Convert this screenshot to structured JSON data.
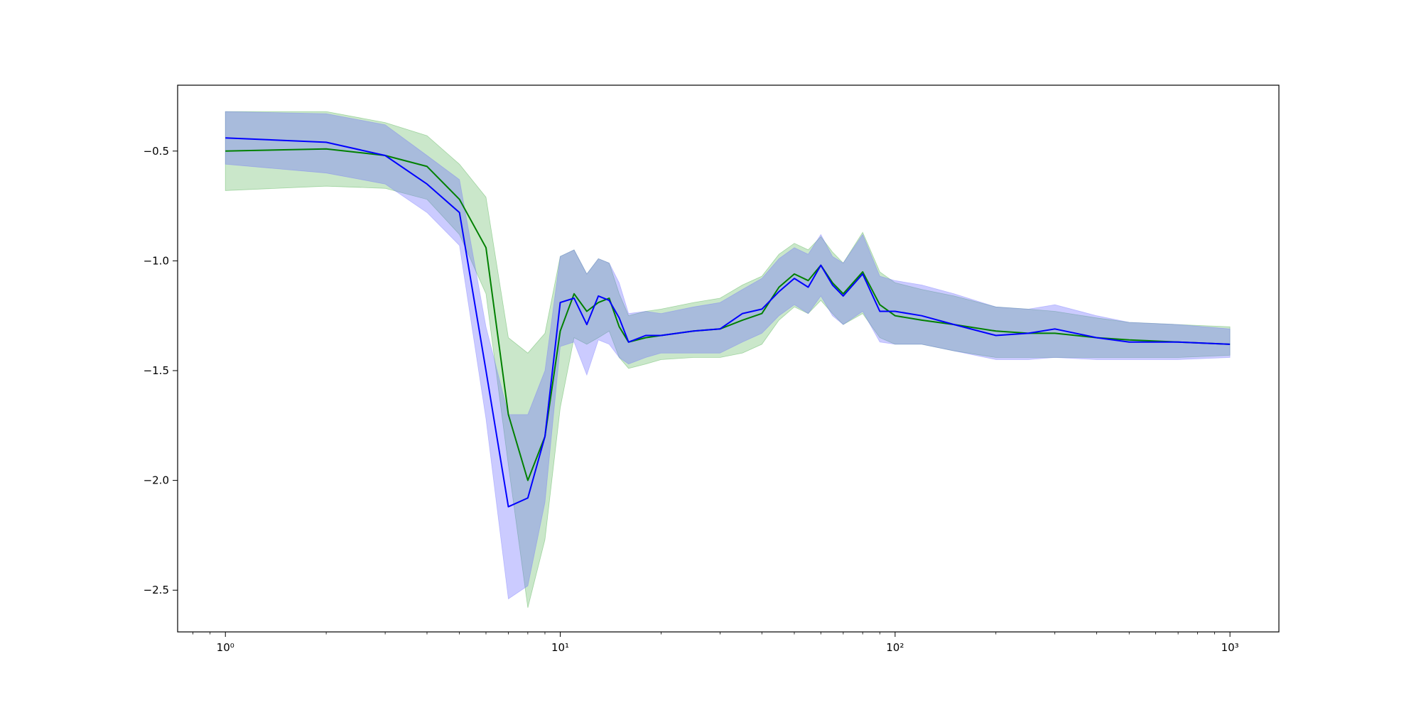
{
  "chart_data": {
    "type": "line",
    "title": "",
    "xlabel": "",
    "ylabel": "",
    "x_scale": "log",
    "xlim": [
      0.72,
      1400
    ],
    "ylim": [
      -2.69,
      -0.2
    ],
    "x_ticks": [
      {
        "value": 1,
        "label": "10⁰"
      },
      {
        "value": 10,
        "label": "10¹"
      },
      {
        "value": 100,
        "label": "10²"
      },
      {
        "value": 1000,
        "label": "10³"
      }
    ],
    "y_ticks": [
      {
        "value": -0.5,
        "label": "−0.5"
      },
      {
        "value": -1.0,
        "label": "−1.0"
      },
      {
        "value": -1.5,
        "label": "−1.5"
      },
      {
        "value": -2.0,
        "label": "−2.0"
      },
      {
        "value": -2.5,
        "label": "−2.5"
      }
    ],
    "grid": false,
    "legend": "none",
    "series": [
      {
        "color": "#008000",
        "band_color": "#2ca02c",
        "band_opacity": 0.25,
        "x": [
          1,
          2,
          3,
          4,
          5,
          6,
          7,
          8,
          9,
          10,
          11,
          12,
          13,
          14,
          15,
          16,
          18,
          20,
          25,
          30,
          35,
          40,
          45,
          50,
          55,
          60,
          65,
          70,
          80,
          90,
          100,
          120,
          150,
          200,
          250,
          300,
          400,
          500,
          700,
          1000
        ],
        "y": [
          -0.5,
          -0.49,
          -0.52,
          -0.57,
          -0.72,
          -0.94,
          -1.7,
          -2.0,
          -1.8,
          -1.32,
          -1.15,
          -1.23,
          -1.19,
          -1.17,
          -1.3,
          -1.37,
          -1.35,
          -1.34,
          -1.32,
          -1.31,
          -1.27,
          -1.24,
          -1.12,
          -1.06,
          -1.09,
          -1.02,
          -1.1,
          -1.15,
          -1.05,
          -1.2,
          -1.25,
          -1.27,
          -1.29,
          -1.32,
          -1.33,
          -1.33,
          -1.35,
          -1.36,
          -1.37,
          -1.38
        ],
        "lower": [
          -0.68,
          -0.66,
          -0.67,
          -0.72,
          -0.88,
          -1.15,
          -1.93,
          -2.58,
          -2.27,
          -1.67,
          -1.35,
          -1.38,
          -1.35,
          -1.32,
          -1.44,
          -1.49,
          -1.47,
          -1.45,
          -1.44,
          -1.44,
          -1.42,
          -1.38,
          -1.27,
          -1.21,
          -1.24,
          -1.18,
          -1.24,
          -1.29,
          -1.24,
          -1.35,
          -1.38,
          -1.38,
          -1.41,
          -1.44,
          -1.44,
          -1.44,
          -1.44,
          -1.44,
          -1.44,
          -1.43
        ],
        "upper": [
          -0.32,
          -0.32,
          -0.37,
          -0.43,
          -0.56,
          -0.71,
          -1.35,
          -1.42,
          -1.33,
          -0.98,
          -0.95,
          -1.06,
          -0.99,
          -1.01,
          -1.15,
          -1.25,
          -1.23,
          -1.22,
          -1.19,
          -1.17,
          -1.11,
          -1.07,
          -0.97,
          -0.92,
          -0.95,
          -0.89,
          -0.96,
          -1.01,
          -0.87,
          -1.05,
          -1.1,
          -1.13,
          -1.16,
          -1.21,
          -1.22,
          -1.23,
          -1.26,
          -1.28,
          -1.29,
          -1.3
        ]
      },
      {
        "color": "#0000ff",
        "band_color": "#6b6bff",
        "band_opacity": 0.35,
        "x": [
          1,
          2,
          3,
          4,
          5,
          6,
          7,
          8,
          9,
          10,
          11,
          12,
          13,
          14,
          15,
          16,
          18,
          20,
          25,
          30,
          35,
          40,
          45,
          50,
          55,
          60,
          65,
          70,
          80,
          90,
          100,
          120,
          150,
          200,
          250,
          300,
          400,
          500,
          700,
          1000
        ],
        "y": [
          -0.44,
          -0.46,
          -0.52,
          -0.65,
          -0.78,
          -1.5,
          -2.12,
          -2.08,
          -1.8,
          -1.19,
          -1.17,
          -1.29,
          -1.16,
          -1.18,
          -1.26,
          -1.37,
          -1.34,
          -1.34,
          -1.32,
          -1.31,
          -1.24,
          -1.22,
          -1.14,
          -1.08,
          -1.12,
          -1.02,
          -1.11,
          -1.16,
          -1.06,
          -1.23,
          -1.23,
          -1.25,
          -1.29,
          -1.34,
          -1.33,
          -1.31,
          -1.35,
          -1.37,
          -1.37,
          -1.38
        ],
        "lower": [
          -0.56,
          -0.6,
          -0.65,
          -0.78,
          -0.93,
          -1.72,
          -2.54,
          -2.48,
          -2.1,
          -1.39,
          -1.37,
          -1.52,
          -1.36,
          -1.38,
          -1.44,
          -1.47,
          -1.44,
          -1.42,
          -1.42,
          -1.42,
          -1.37,
          -1.33,
          -1.25,
          -1.2,
          -1.24,
          -1.16,
          -1.25,
          -1.29,
          -1.23,
          -1.37,
          -1.38,
          -1.38,
          -1.41,
          -1.45,
          -1.45,
          -1.44,
          -1.45,
          -1.45,
          -1.45,
          -1.44
        ],
        "upper": [
          -0.32,
          -0.33,
          -0.38,
          -0.52,
          -0.63,
          -1.3,
          -1.7,
          -1.7,
          -1.5,
          -0.98,
          -0.95,
          -1.06,
          -0.99,
          -1.01,
          -1.1,
          -1.24,
          -1.23,
          -1.24,
          -1.21,
          -1.19,
          -1.13,
          -1.08,
          -0.99,
          -0.94,
          -0.97,
          -0.88,
          -0.98,
          -1.01,
          -0.88,
          -1.07,
          -1.09,
          -1.11,
          -1.15,
          -1.21,
          -1.22,
          -1.2,
          -1.25,
          -1.28,
          -1.29,
          -1.31
        ]
      }
    ]
  }
}
